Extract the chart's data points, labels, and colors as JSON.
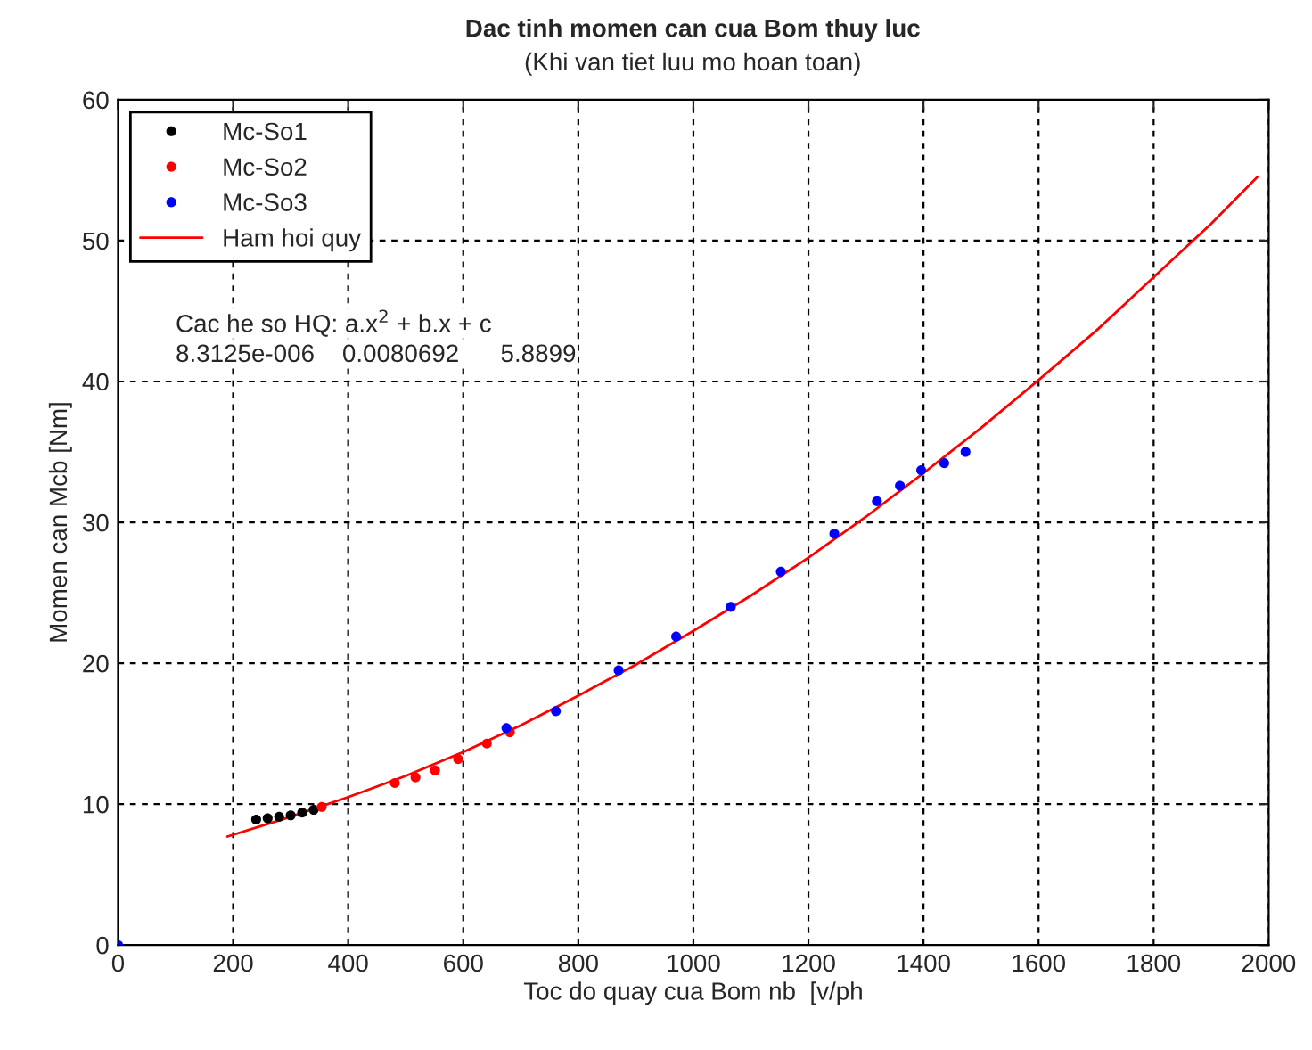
{
  "chart_data": {
    "type": "scatter",
    "title": "Dac tinh momen can cua Bom thuy luc",
    "subtitle": "(Khi van tiet luu mo hoan toan)",
    "xlabel": "Toc do quay cua Bom nb  [v/ph",
    "ylabel": "Momen can Mcb [Nm]",
    "xlim": [
      0,
      2000
    ],
    "ylim": [
      0,
      60
    ],
    "xticks": [
      0,
      200,
      400,
      600,
      800,
      1000,
      1200,
      1400,
      1600,
      1800,
      2000
    ],
    "yticks": [
      0,
      10,
      20,
      30,
      40,
      50,
      60
    ],
    "grid": true,
    "legend": "top left",
    "marker": "circle",
    "annotations": [
      "Cac he so HQ: a.x$^{2}$ + b.x + c",
      "8.3125e-006    0.0080692      5.8899"
    ],
    "series": [
      {
        "name": "Mc-So1",
        "color": "#000000",
        "x": [
          240,
          260,
          280,
          300,
          320,
          340
        ],
        "values": [
          8.9,
          9.0,
          9.1,
          9.2,
          9.4,
          9.6
        ]
      },
      {
        "name": "Mc-So2",
        "color": "#ff0000",
        "x": [
          354,
          481,
          517,
          551,
          591,
          641,
          681
        ],
        "values": [
          9.8,
          11.5,
          11.9,
          12.4,
          13.2,
          14.3,
          15.1
        ]
      },
      {
        "name": "Mc-So3",
        "color": "#0000ff",
        "x": [
          0,
          675,
          761,
          870,
          970,
          1065,
          1152,
          1245,
          1319,
          1359,
          1396,
          1436,
          1473
        ],
        "values": [
          0,
          15.4,
          16.6,
          19.5,
          21.9,
          24.0,
          26.5,
          29.2,
          31.5,
          32.6,
          33.7,
          34.2,
          35.0
        ]
      },
      {
        "name": "Ham hoi quy",
        "type": "line",
        "marker": "none",
        "color": "#ff0000",
        "x": [
          190,
          300,
          400,
          500,
          600,
          700,
          800,
          900,
          1000,
          1100,
          1200,
          1300,
          1400,
          1500,
          1600,
          1700,
          1800,
          1900,
          1980
        ],
        "values": [
          7.7,
          9.1,
          10.5,
          12.0,
          13.7,
          15.6,
          17.7,
          19.9,
          22.3,
          24.8,
          27.5,
          30.4,
          33.5,
          36.7,
          40.1,
          43.6,
          47.4,
          51.2,
          54.5
        ]
      }
    ]
  }
}
